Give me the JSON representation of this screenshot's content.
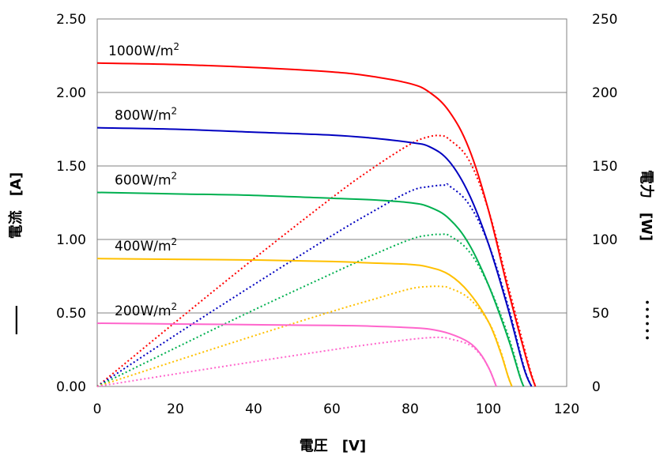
{
  "chart_data": {
    "type": "line",
    "xlabel": "電圧　[V]",
    "ylabel_left": "電流　[A]",
    "ylabel_right": "電力　[W]",
    "left_axis_marker": "――",
    "right_axis_marker": "･･････",
    "xlim": [
      0,
      120
    ],
    "ylim_left": [
      0,
      2.5
    ],
    "ylim_right": [
      0,
      250
    ],
    "x_ticks": [
      "0",
      "20",
      "40",
      "60",
      "80",
      "100",
      "120"
    ],
    "y_left_ticks": [
      "0.00",
      "0.50",
      "1.00",
      "1.50",
      "2.00",
      "2.50"
    ],
    "y_right_ticks": [
      "0",
      "50",
      "100",
      "150",
      "200",
      "250"
    ],
    "grid": "horizontal",
    "series": [
      {
        "label": "1000W/m2",
        "label_main": "1000W/m",
        "label_sup": "2",
        "color": "#ff0000",
        "current_points": [
          [
            0,
            2.2
          ],
          [
            20,
            2.19
          ],
          [
            40,
            2.17
          ],
          [
            60,
            2.14
          ],
          [
            70,
            2.11
          ],
          [
            80,
            2.06
          ],
          [
            85,
            2.0
          ],
          [
            90,
            1.87
          ],
          [
            95,
            1.62
          ],
          [
            100,
            1.2
          ],
          [
            105,
            0.66
          ],
          [
            110,
            0.16
          ],
          [
            112,
            0
          ]
        ],
        "power_points": [
          [
            0,
            0
          ],
          [
            20,
            43.8
          ],
          [
            40,
            86.8
          ],
          [
            60,
            128.4
          ],
          [
            70,
            147.7
          ],
          [
            80,
            164.8
          ],
          [
            85,
            170.0
          ],
          [
            88,
            170.5
          ],
          [
            90,
            168.0
          ],
          [
            95,
            154.0
          ],
          [
            100,
            120.0
          ],
          [
            105,
            69.0
          ],
          [
            110,
            17.6
          ],
          [
            112,
            0
          ]
        ]
      },
      {
        "label": "800W/m2",
        "label_main": "800W/m",
        "label_sup": "2",
        "color": "#0000c0",
        "current_points": [
          [
            0,
            1.76
          ],
          [
            20,
            1.75
          ],
          [
            40,
            1.73
          ],
          [
            60,
            1.71
          ],
          [
            70,
            1.69
          ],
          [
            80,
            1.66
          ],
          [
            85,
            1.63
          ],
          [
            90,
            1.53
          ],
          [
            95,
            1.31
          ],
          [
            100,
            0.97
          ],
          [
            105,
            0.53
          ],
          [
            109,
            0.13
          ],
          [
            111,
            0
          ]
        ],
        "power_points": [
          [
            0,
            0
          ],
          [
            20,
            35.0
          ],
          [
            40,
            69.2
          ],
          [
            60,
            102.6
          ],
          [
            70,
            118.3
          ],
          [
            80,
            132.8
          ],
          [
            85,
            136.0
          ],
          [
            89,
            137.0
          ],
          [
            90,
            136.5
          ],
          [
            95,
            124.0
          ],
          [
            100,
            97.0
          ],
          [
            105,
            55.0
          ],
          [
            109,
            14.0
          ],
          [
            111,
            0
          ]
        ]
      },
      {
        "label": "600W/m2",
        "label_main": "600W/m",
        "label_sup": "2",
        "color": "#00b050",
        "current_points": [
          [
            0,
            1.32
          ],
          [
            20,
            1.31
          ],
          [
            40,
            1.3
          ],
          [
            60,
            1.28
          ],
          [
            70,
            1.27
          ],
          [
            80,
            1.25
          ],
          [
            85,
            1.22
          ],
          [
            90,
            1.14
          ],
          [
            95,
            0.97
          ],
          [
            100,
            0.69
          ],
          [
            105,
            0.33
          ],
          [
            108,
            0.07
          ],
          [
            109,
            0
          ]
        ],
        "power_points": [
          [
            0,
            0
          ],
          [
            20,
            26.2
          ],
          [
            40,
            52.0
          ],
          [
            60,
            76.8
          ],
          [
            70,
            88.9
          ],
          [
            80,
            100.0
          ],
          [
            85,
            103.0
          ],
          [
            88,
            103.4
          ],
          [
            90,
            102.6
          ],
          [
            95,
            92.0
          ],
          [
            100,
            69.0
          ],
          [
            105,
            35.0
          ],
          [
            108,
            7.5
          ],
          [
            109,
            0
          ]
        ]
      },
      {
        "label": "400W/m2",
        "label_main": "400W/m",
        "label_sup": "2",
        "color": "#ffc000",
        "current_points": [
          [
            0,
            0.87
          ],
          [
            20,
            0.865
          ],
          [
            40,
            0.86
          ],
          [
            60,
            0.85
          ],
          [
            70,
            0.84
          ],
          [
            80,
            0.83
          ],
          [
            85,
            0.81
          ],
          [
            90,
            0.76
          ],
          [
            95,
            0.64
          ],
          [
            100,
            0.44
          ],
          [
            103,
            0.24
          ],
          [
            105,
            0.07
          ],
          [
            106,
            0
          ]
        ],
        "power_points": [
          [
            0,
            0
          ],
          [
            20,
            17.3
          ],
          [
            40,
            34.4
          ],
          [
            60,
            51.0
          ],
          [
            70,
            58.8
          ],
          [
            80,
            66.4
          ],
          [
            85,
            68.0
          ],
          [
            88,
            68.0
          ],
          [
            90,
            67.0
          ],
          [
            95,
            60.0
          ],
          [
            100,
            44.0
          ],
          [
            103,
            25.0
          ],
          [
            105,
            7.0
          ],
          [
            106,
            0
          ]
        ]
      },
      {
        "label": "200W/m2",
        "label_main": "200W/m",
        "label_sup": "2",
        "color": "#ff66cc",
        "current_points": [
          [
            0,
            0.43
          ],
          [
            20,
            0.425
          ],
          [
            40,
            0.42
          ],
          [
            60,
            0.415
          ],
          [
            70,
            0.41
          ],
          [
            80,
            0.4
          ],
          [
            85,
            0.39
          ],
          [
            90,
            0.36
          ],
          [
            95,
            0.3
          ],
          [
            98,
            0.22
          ],
          [
            100,
            0.13
          ],
          [
            101,
            0.07
          ],
          [
            102,
            0
          ]
        ],
        "power_points": [
          [
            0,
            0
          ],
          [
            20,
            8.5
          ],
          [
            40,
            16.8
          ],
          [
            60,
            24.9
          ],
          [
            70,
            28.7
          ],
          [
            80,
            32.0
          ],
          [
            85,
            33.2
          ],
          [
            88,
            33.3
          ],
          [
            90,
            32.5
          ],
          [
            95,
            28.5
          ],
          [
            98,
            21.5
          ],
          [
            100,
            13.0
          ],
          [
            101,
            7.0
          ],
          [
            102,
            0
          ]
        ]
      }
    ]
  }
}
